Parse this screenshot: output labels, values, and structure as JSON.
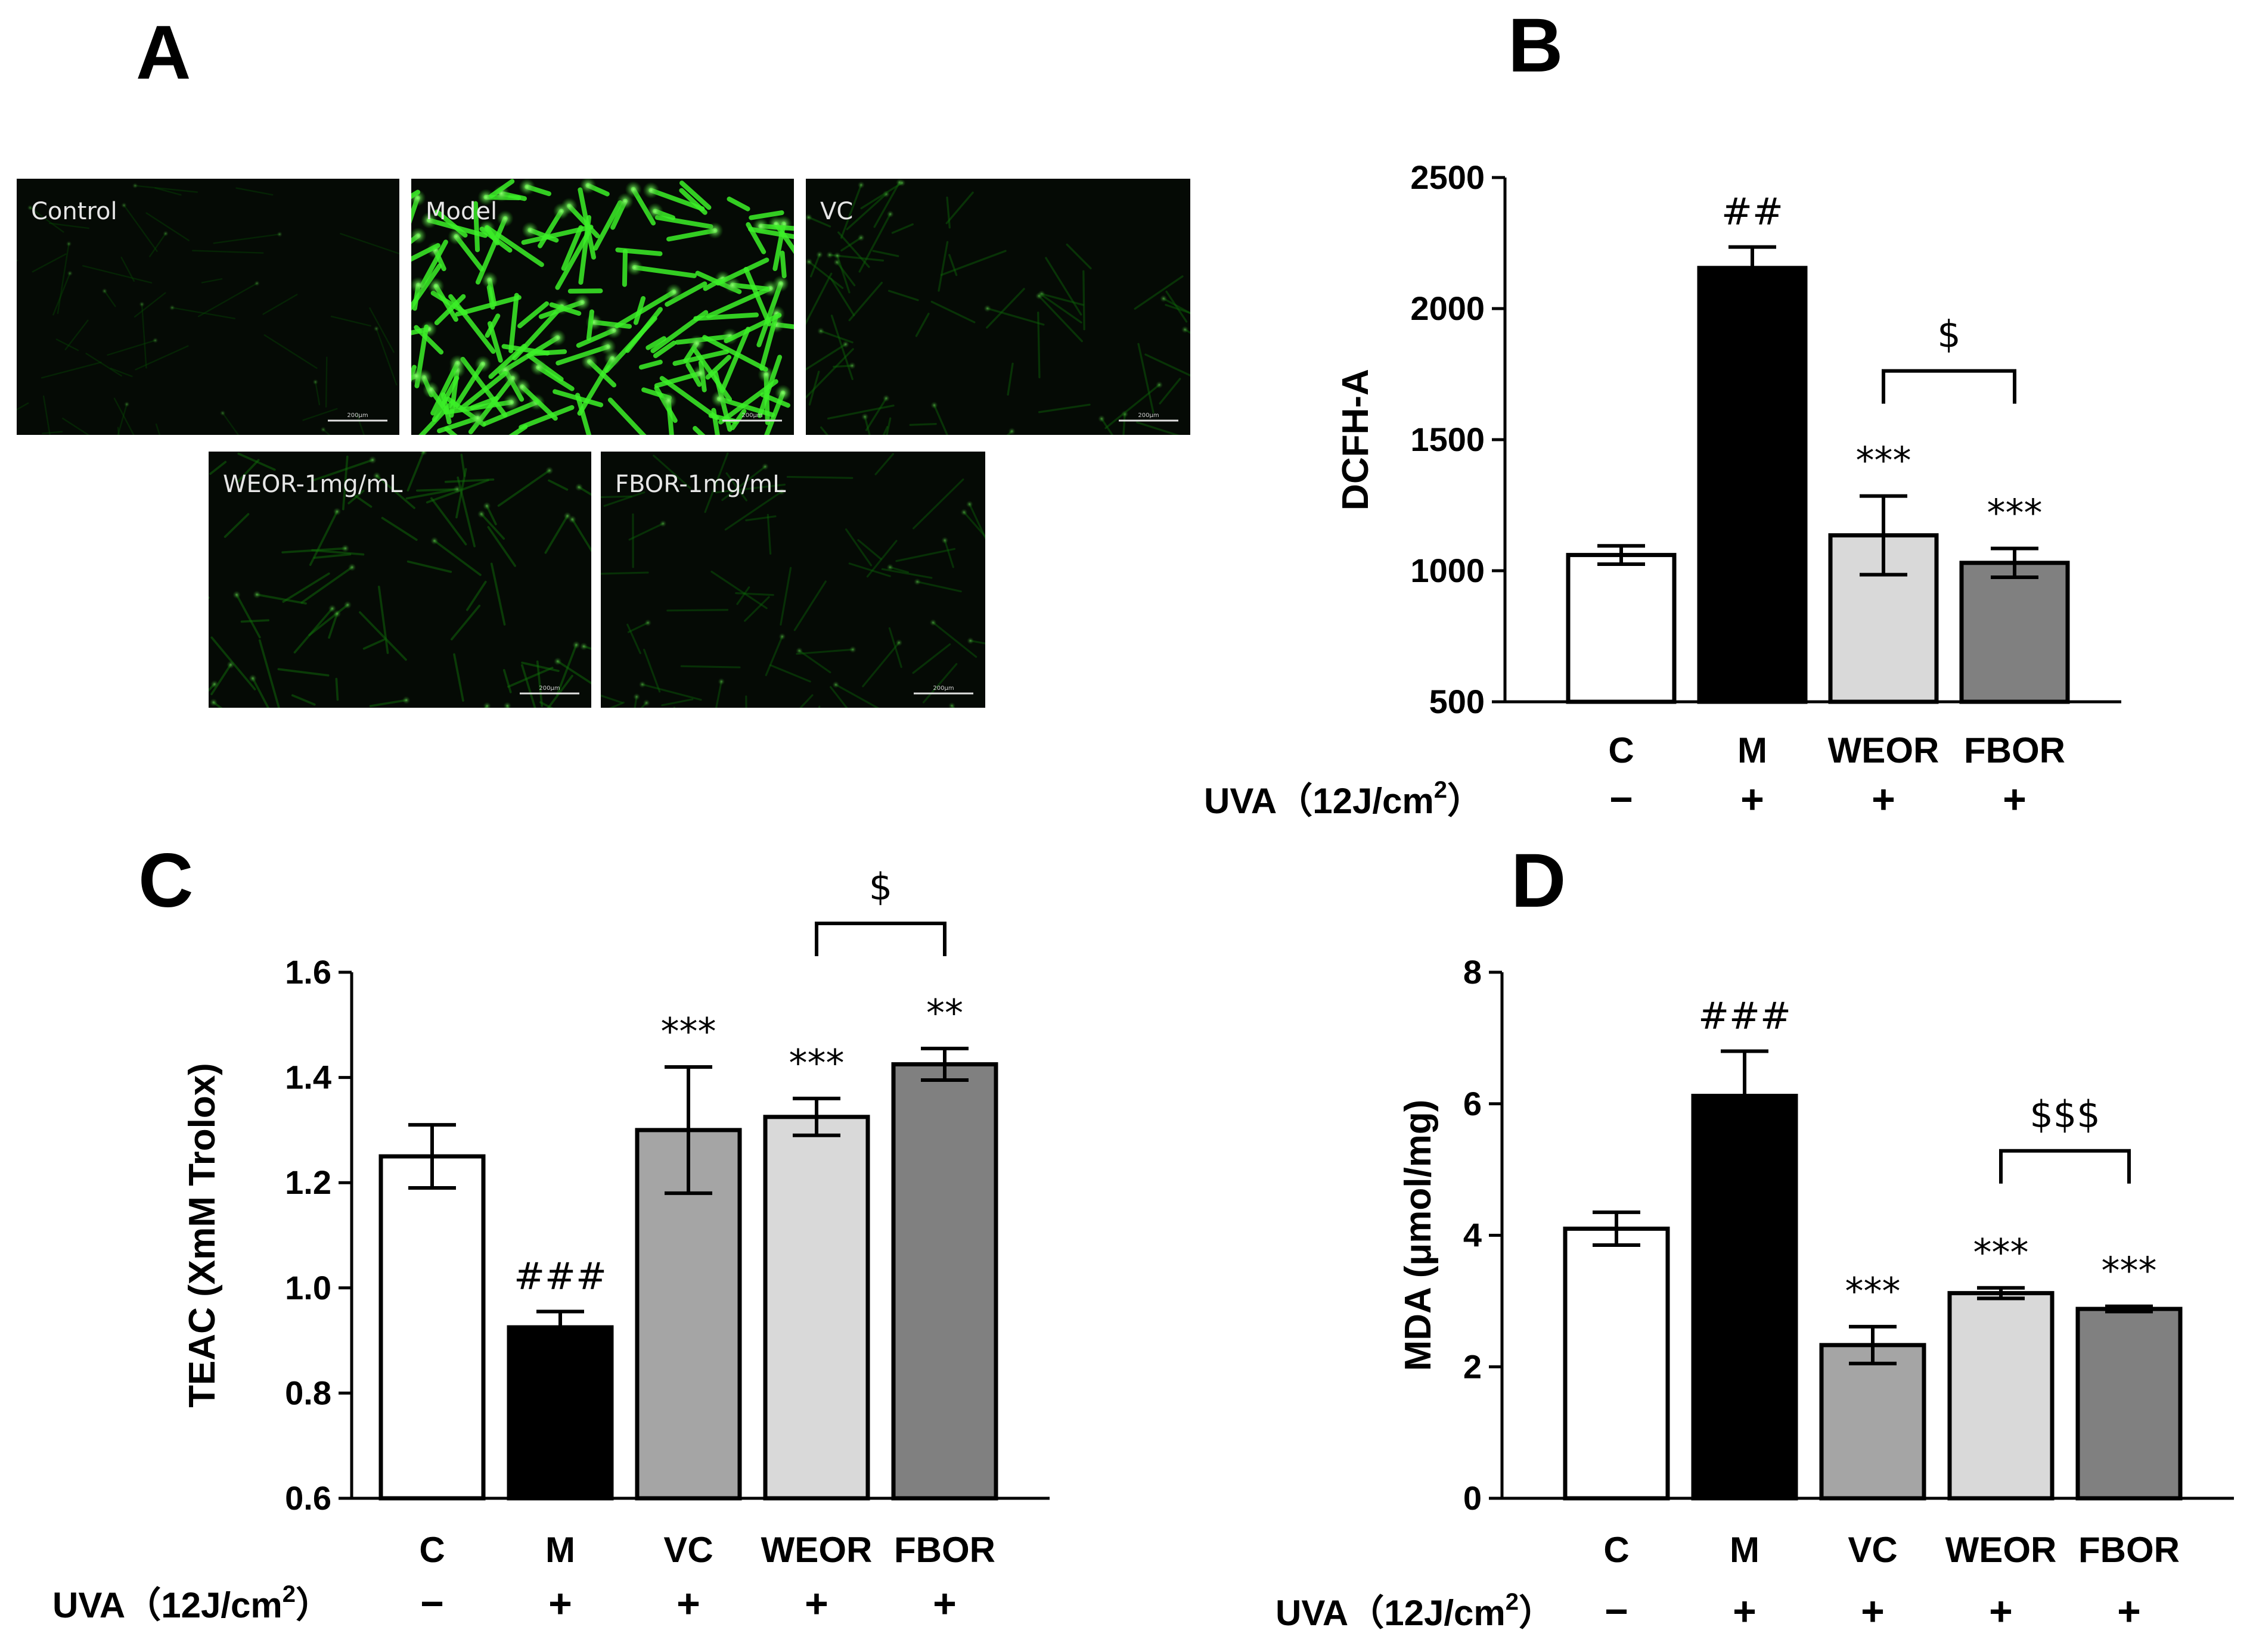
{
  "panels": {
    "A": {
      "letter": "A",
      "images": [
        {
          "label": "Control",
          "scale": "200μm",
          "intensity": 0.08
        },
        {
          "label": "Model",
          "scale": "200μm",
          "intensity": 1.0
        },
        {
          "label": "VC",
          "scale": "200μm",
          "intensity": 0.22
        },
        {
          "label": "WEOR-1mg/mL",
          "scale": "200μm",
          "intensity": 0.28
        },
        {
          "label": "FBOR-1mg/mL",
          "scale": "200μm",
          "intensity": 0.2
        }
      ]
    },
    "B": {
      "letter": "B"
    },
    "C": {
      "letter": "C"
    },
    "D": {
      "letter": "D"
    }
  },
  "uva_label": "UVA（12J/cm",
  "uva_sup": "2",
  "uva_close": "）",
  "chart_data": [
    {
      "id": "B",
      "type": "bar",
      "ylabel": "DCFH-A",
      "ylim": [
        500,
        2500
      ],
      "yticks": [
        "500",
        "1000",
        "1500",
        "2000",
        "2500"
      ],
      "categories": [
        "C",
        "M",
        "WEOR",
        "FBOR"
      ],
      "uva": [
        "−",
        "+",
        "+",
        "+"
      ],
      "values": [
        1060,
        2155,
        1135,
        1030
      ],
      "errors": [
        35,
        80,
        150,
        55
      ],
      "colors": [
        "#ffffff",
        "#000000",
        "#d9d9d9",
        "#808080"
      ],
      "significance": [
        "",
        "##",
        "***",
        "***"
      ],
      "bracket": {
        "from": 2,
        "to": 3,
        "label": "$"
      }
    },
    {
      "id": "C",
      "type": "bar",
      "ylabel": "TEAC (XmM Trolox)",
      "ylim": [
        0.6,
        1.6
      ],
      "yticks": [
        "0.6",
        "0.8",
        "1.0",
        "1.2",
        "1.4",
        "1.6"
      ],
      "categories": [
        "C",
        "M",
        "VC",
        "WEOR",
        "FBOR"
      ],
      "uva": [
        "−",
        "+",
        "+",
        "+",
        "+"
      ],
      "values": [
        1.25,
        0.925,
        1.3,
        1.325,
        1.425
      ],
      "errors": [
        0.06,
        0.03,
        0.12,
        0.035,
        0.03
      ],
      "colors": [
        "#ffffff",
        "#000000",
        "#a5a5a5",
        "#d9d9d9",
        "#808080"
      ],
      "significance": [
        "",
        "###",
        "***",
        "***",
        "**"
      ],
      "bracket": {
        "from": 3,
        "to": 4,
        "label": "$"
      }
    },
    {
      "id": "D",
      "type": "bar",
      "ylabel": "MDA (μmol/mg)",
      "ylim": [
        0,
        8
      ],
      "yticks": [
        "0",
        "2",
        "4",
        "6",
        "8"
      ],
      "categories": [
        "C",
        "M",
        "VC",
        "WEOR",
        "FBOR"
      ],
      "uva": [
        "−",
        "+",
        "+",
        "+",
        "+"
      ],
      "values": [
        4.1,
        6.12,
        2.33,
        3.12,
        2.88
      ],
      "errors": [
        0.25,
        0.68,
        0.28,
        0.08,
        0.04
      ],
      "colors": [
        "#ffffff",
        "#000000",
        "#a5a5a5",
        "#d9d9d9",
        "#808080"
      ],
      "significance": [
        "",
        "###",
        "***",
        "***",
        "***"
      ],
      "bracket": {
        "from": 3,
        "to": 4,
        "label": "$$$"
      }
    }
  ]
}
